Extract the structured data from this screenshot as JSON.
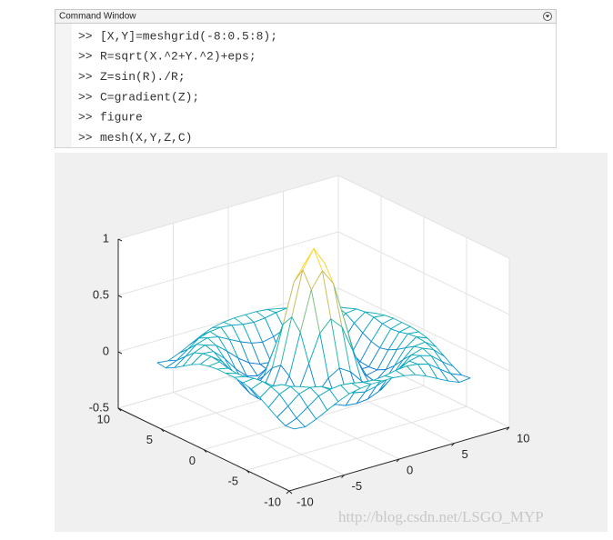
{
  "command_window": {
    "title": "Command Window",
    "prompt": ">>",
    "lines": [
      "[X,Y]=meshgrid(-8:0.5:8);",
      "R=sqrt(X.^2+Y.^2)+eps;",
      "Z=sin(R)./R;",
      "C=gradient(Z);",
      "figure",
      "mesh(X,Y,Z,C)"
    ]
  },
  "chart_data": {
    "type": "mesh",
    "x": [
      -8,
      -7,
      -6,
      -5,
      -4,
      -3,
      -2,
      -1,
      0,
      1,
      2,
      3,
      4,
      5,
      6,
      7,
      8
    ],
    "y": [
      -8,
      -7,
      -6,
      -5,
      -4,
      -3,
      -2,
      -1,
      0,
      1,
      2,
      3,
      4,
      5,
      6,
      7,
      8
    ],
    "z": [
      [
        -0.08,
        -0.09,
        -0.05,
        0,
        0.05,
        0.09,
        0.11,
        0.12,
        0.12,
        0.12,
        0.11,
        0.09,
        0.05,
        0,
        -0.05,
        -0.09,
        -0.08
      ],
      [
        -0.09,
        -0.05,
        0.02,
        0.09,
        0.12,
        0.13,
        0.12,
        0.1,
        0.09,
        0.1,
        0.12,
        0.13,
        0.12,
        0.09,
        0.02,
        -0.05,
        -0.09
      ],
      [
        -0.05,
        0.02,
        0.1,
        0.13,
        0.11,
        0.06,
        0.01,
        -0.03,
        -0.05,
        -0.03,
        0.01,
        0.06,
        0.11,
        0.13,
        0.1,
        0.02,
        -0.05
      ],
      [
        0,
        0.09,
        0.13,
        0.1,
        0.02,
        -0.07,
        -0.14,
        -0.18,
        -0.19,
        -0.18,
        -0.14,
        -0.07,
        0.02,
        0.1,
        0.13,
        0.09,
        0
      ],
      [
        0.05,
        0.12,
        0.11,
        0.02,
        -0.1,
        -0.19,
        -0.22,
        -0.2,
        -0.19,
        -0.2,
        -0.22,
        -0.19,
        -0.1,
        0.02,
        0.11,
        0.12,
        0.05
      ],
      [
        0.09,
        0.13,
        0.06,
        -0.07,
        -0.19,
        -0.21,
        -0.12,
        -0.01,
        0.05,
        -0.01,
        -0.12,
        -0.21,
        -0.19,
        -0.07,
        0.06,
        0.13,
        0.09
      ],
      [
        0.11,
        0.12,
        0.01,
        -0.14,
        -0.22,
        -0.12,
        0.11,
        0.35,
        0.45,
        0.35,
        0.11,
        -0.12,
        -0.22,
        -0.14,
        0.01,
        0.12,
        0.11
      ],
      [
        0.12,
        0.1,
        -0.03,
        -0.18,
        -0.2,
        -0.01,
        0.35,
        0.7,
        0.84,
        0.7,
        0.35,
        -0.01,
        -0.2,
        -0.18,
        -0.03,
        0.1,
        0.12
      ],
      [
        0.12,
        0.09,
        -0.05,
        -0.19,
        -0.19,
        0.05,
        0.45,
        0.84,
        1,
        0.84,
        0.45,
        0.05,
        -0.19,
        -0.19,
        -0.05,
        0.09,
        0.12
      ],
      [
        0.12,
        0.1,
        -0.03,
        -0.18,
        -0.2,
        -0.01,
        0.35,
        0.7,
        0.84,
        0.7,
        0.35,
        -0.01,
        -0.2,
        -0.18,
        -0.03,
        0.1,
        0.12
      ],
      [
        0.11,
        0.12,
        0.01,
        -0.14,
        -0.22,
        -0.12,
        0.11,
        0.35,
        0.45,
        0.35,
        0.11,
        -0.12,
        -0.22,
        -0.14,
        0.01,
        0.12,
        0.11
      ],
      [
        0.09,
        0.13,
        0.06,
        -0.07,
        -0.19,
        -0.21,
        -0.12,
        -0.01,
        0.05,
        -0.01,
        -0.12,
        -0.21,
        -0.19,
        -0.07,
        0.06,
        0.13,
        0.09
      ],
      [
        0.05,
        0.12,
        0.11,
        0.02,
        -0.1,
        -0.19,
        -0.22,
        -0.2,
        -0.19,
        -0.2,
        -0.22,
        -0.19,
        -0.1,
        0.02,
        0.11,
        0.12,
        0.05
      ],
      [
        0,
        0.09,
        0.13,
        0.1,
        0.02,
        -0.07,
        -0.14,
        -0.18,
        -0.19,
        -0.18,
        -0.14,
        -0.07,
        0.02,
        0.1,
        0.13,
        0.09,
        0
      ],
      [
        -0.05,
        0.02,
        0.1,
        0.13,
        0.11,
        0.06,
        0.01,
        -0.03,
        -0.05,
        -0.03,
        0.01,
        0.06,
        0.11,
        0.13,
        0.1,
        0.02,
        -0.05
      ],
      [
        -0.09,
        -0.05,
        0.02,
        0.09,
        0.12,
        0.13,
        0.12,
        0.1,
        0.09,
        0.1,
        0.12,
        0.13,
        0.12,
        0.09,
        0.02,
        -0.05,
        -0.09
      ],
      [
        -0.08,
        -0.09,
        -0.05,
        0,
        0.05,
        0.09,
        0.11,
        0.12,
        0.12,
        0.12,
        0.11,
        0.09,
        0.05,
        0,
        -0.05,
        -0.09,
        -0.08
      ]
    ],
    "xlim": [
      -10,
      10
    ],
    "ylim": [
      -10,
      10
    ],
    "zlim": [
      -0.5,
      1
    ],
    "xticks": [
      -10,
      -5,
      0,
      5,
      10
    ],
    "yticks": [
      -10,
      -5,
      0,
      5,
      10
    ],
    "zticks": [
      -0.5,
      0,
      0.5,
      1
    ],
    "grid": true,
    "colormap": [
      "#352a87",
      "#0363e1",
      "#1485d4",
      "#06a7c6",
      "#38b99e",
      "#92bf73",
      "#d9ba56",
      "#fcce2e",
      "#f9fb0e"
    ]
  },
  "watermark": "http://blog.csdn.net/LSGO_MYP"
}
